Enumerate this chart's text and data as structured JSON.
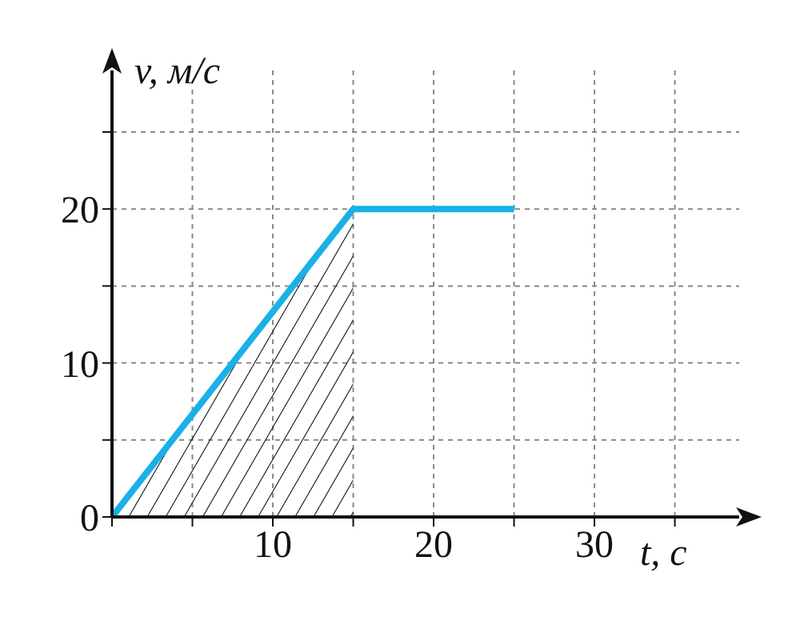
{
  "chart_data": {
    "type": "line",
    "xlabel": "t, с",
    "ylabel": "v, м/с",
    "x": [
      0,
      15,
      25
    ],
    "series": [
      {
        "type": "area",
        "color": "#000000",
        "x": [
          0,
          15
        ],
        "values": [
          0,
          20
        ]
      },
      {
        "color": "#1ab0e8",
        "values": [
          0,
          20,
          20
        ]
      }
    ],
    "xlim": [
      0,
      39
    ],
    "ylim": [
      0,
      29
    ],
    "xticks": [
      {
        "value": 0,
        "label": null
      },
      {
        "value": 5,
        "label": null
      },
      10,
      {
        "value": 15,
        "label": null
      },
      20,
      {
        "value": 25,
        "label": null
      },
      30,
      {
        "value": 35,
        "label": null
      }
    ],
    "yticks": [
      0,
      {
        "value": 5,
        "label": null
      },
      10,
      {
        "value": 15,
        "label": null
      },
      20,
      {
        "value": 25,
        "label": null
      }
    ],
    "grid": true,
    "marker": "none",
    "line_style": "solid"
  }
}
